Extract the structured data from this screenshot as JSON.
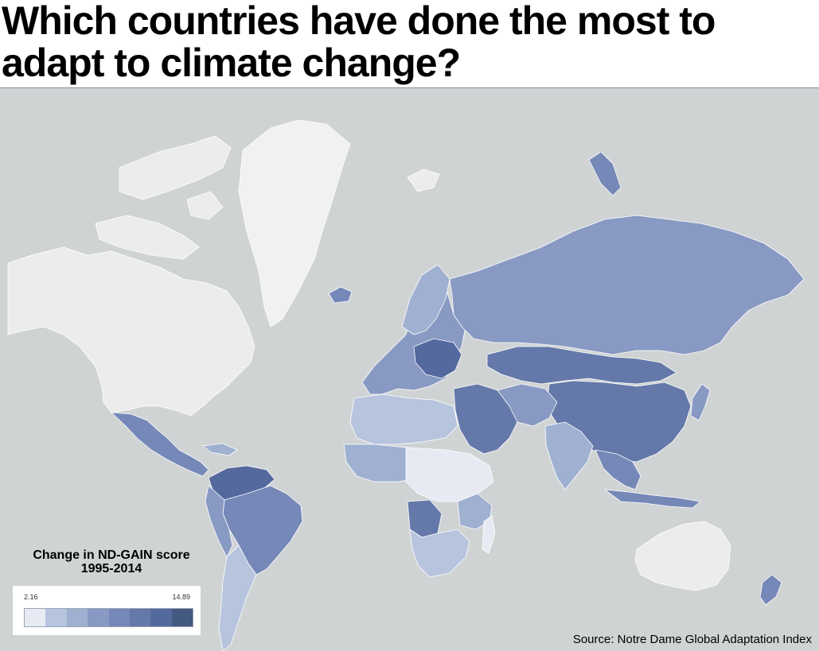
{
  "title": "Which countries have done the most to adapt to climate change?",
  "legend": {
    "title_line1": "Change in ND-GAIN score",
    "title_line2": "1995-2014",
    "min_label": "2.16",
    "max_label": "14.89",
    "colors": [
      "#e7eaf2",
      "#b7c4dd",
      "#9fb0d1",
      "#8899c3",
      "#7688b8",
      "#6479a9",
      "#54699e",
      "#43597f"
    ]
  },
  "source": "Source: Notre Dame Global Adaptation Index",
  "colors": {
    "ocean": "#cfd3d4",
    "no_data": "#ededed",
    "border": "#ffffff"
  },
  "regions": [
    {
      "name": "Canada / USA",
      "level": 0
    },
    {
      "name": "Greenland",
      "level": -1
    },
    {
      "name": "Russia",
      "level": 4
    },
    {
      "name": "China",
      "level": 6
    },
    {
      "name": "Kazakhstan / Mongolia",
      "level": 6
    },
    {
      "name": "India",
      "level": 3
    },
    {
      "name": "Brazil",
      "level": 5
    },
    {
      "name": "Australia",
      "level": 0
    },
    {
      "name": "Mexico",
      "level": 4
    },
    {
      "name": "Angola",
      "level": 6
    },
    {
      "name": "Saudi Arabia",
      "level": 6
    }
  ]
}
